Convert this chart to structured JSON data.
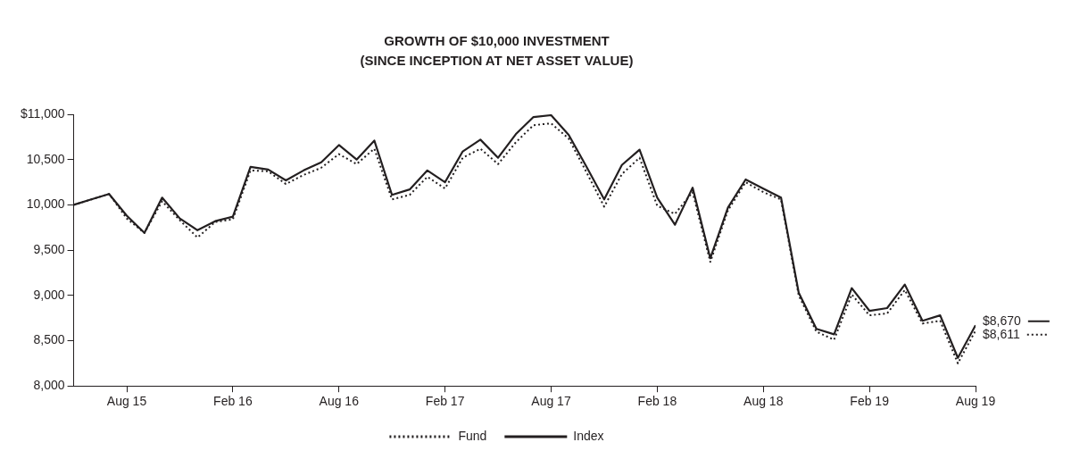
{
  "chart_data": {
    "type": "line",
    "title": "GROWTH OF $10,000 INVESTMENT",
    "subtitle": "(SINCE INCEPTION AT NET ASSET VALUE)",
    "x": [
      "2015-05",
      "2015-06",
      "2015-07",
      "2015-08",
      "2015-09",
      "2015-10",
      "2015-11",
      "2015-12",
      "2016-01",
      "2016-02",
      "2016-03",
      "2016-04",
      "2016-05",
      "2016-06",
      "2016-07",
      "2016-08",
      "2016-09",
      "2016-10",
      "2016-11",
      "2016-12",
      "2017-01",
      "2017-02",
      "2017-03",
      "2017-04",
      "2017-05",
      "2017-06",
      "2017-07",
      "2017-08",
      "2017-09",
      "2017-10",
      "2017-11",
      "2017-12",
      "2018-01",
      "2018-02",
      "2018-03",
      "2018-04",
      "2018-05",
      "2018-06",
      "2018-07",
      "2018-08",
      "2018-09",
      "2018-10",
      "2018-11",
      "2018-12",
      "2019-01",
      "2019-02",
      "2019-03",
      "2019-04",
      "2019-05",
      "2019-06",
      "2019-07",
      "2019-08"
    ],
    "series": [
      {
        "name": "Fund",
        "color": "#231f20",
        "line_style": "dotted",
        "values": [
          10000,
          10060,
          10120,
          9850,
          9690,
          10040,
          9830,
          9640,
          9810,
          9840,
          10380,
          10370,
          10230,
          10330,
          10410,
          10560,
          10450,
          10620,
          10060,
          10110,
          10310,
          10180,
          10520,
          10620,
          10450,
          10690,
          10880,
          10900,
          10730,
          10360,
          9980,
          10340,
          10520,
          9990,
          9900,
          10140,
          9370,
          9940,
          10250,
          10140,
          10060,
          9000,
          8600,
          8510,
          9010,
          8780,
          8800,
          9060,
          8690,
          8720,
          8250,
          8611
        ],
        "value_labels": [
          null,
          null,
          null,
          null,
          null,
          null,
          null,
          null,
          null,
          null,
          null,
          null,
          null,
          null,
          null,
          null,
          null,
          null,
          null,
          null,
          null,
          null,
          null,
          null,
          null,
          null,
          null,
          null,
          null,
          null,
          null,
          null,
          null,
          null,
          null,
          null,
          null,
          null,
          null,
          null,
          null,
          null,
          null,
          null,
          null,
          null,
          null,
          null,
          null,
          null,
          null,
          "$8,611"
        ]
      },
      {
        "name": "Index",
        "color": "#231f20",
        "line_style": "solid",
        "values": [
          10000,
          10060,
          10120,
          9880,
          9690,
          10080,
          9850,
          9720,
          9820,
          9870,
          10420,
          10390,
          10270,
          10380,
          10470,
          10660,
          10500,
          10710,
          10110,
          10170,
          10380,
          10250,
          10590,
          10720,
          10520,
          10780,
          10970,
          10990,
          10770,
          10420,
          10060,
          10440,
          10610,
          10080,
          9780,
          10190,
          9410,
          9970,
          10280,
          10180,
          10080,
          9030,
          8630,
          8570,
          9080,
          8830,
          8860,
          9120,
          8720,
          8780,
          8310,
          8670
        ],
        "value_labels": [
          null,
          null,
          null,
          null,
          null,
          null,
          null,
          null,
          null,
          null,
          null,
          null,
          null,
          null,
          null,
          null,
          null,
          null,
          null,
          null,
          null,
          null,
          null,
          null,
          null,
          null,
          null,
          null,
          null,
          null,
          null,
          null,
          null,
          null,
          null,
          null,
          null,
          null,
          null,
          null,
          null,
          null,
          null,
          null,
          null,
          null,
          null,
          null,
          null,
          null,
          null,
          "$8,670"
        ]
      }
    ],
    "xlim": [
      "2015-05",
      "2019-08"
    ],
    "xticks": [
      {
        "value": "2015-08",
        "label": "Aug 15"
      },
      {
        "value": "2016-02",
        "label": "Feb 16"
      },
      {
        "value": "2016-08",
        "label": "Aug 16"
      },
      {
        "value": "2017-02",
        "label": "Feb 17"
      },
      {
        "value": "2017-08",
        "label": "Aug 17"
      },
      {
        "value": "2018-02",
        "label": "Feb 18"
      },
      {
        "value": "2018-08",
        "label": "Aug 18"
      },
      {
        "value": "2019-02",
        "label": "Feb 19"
      },
      {
        "value": "2019-08",
        "label": "Aug 19"
      }
    ],
    "ylim": [
      8000,
      11000
    ],
    "yticks": [
      {
        "value": 8000,
        "label": "8,000"
      },
      {
        "value": 8500,
        "label": "8,500"
      },
      {
        "value": 9000,
        "label": "9,000"
      },
      {
        "value": 9500,
        "label": "9,500"
      },
      {
        "value": 10000,
        "label": "10,000"
      },
      {
        "value": 10500,
        "label": "10,500"
      },
      {
        "value": 11000,
        "label": "$11,000"
      }
    ],
    "grid": false,
    "legend": "bottom",
    "marker": "none"
  }
}
